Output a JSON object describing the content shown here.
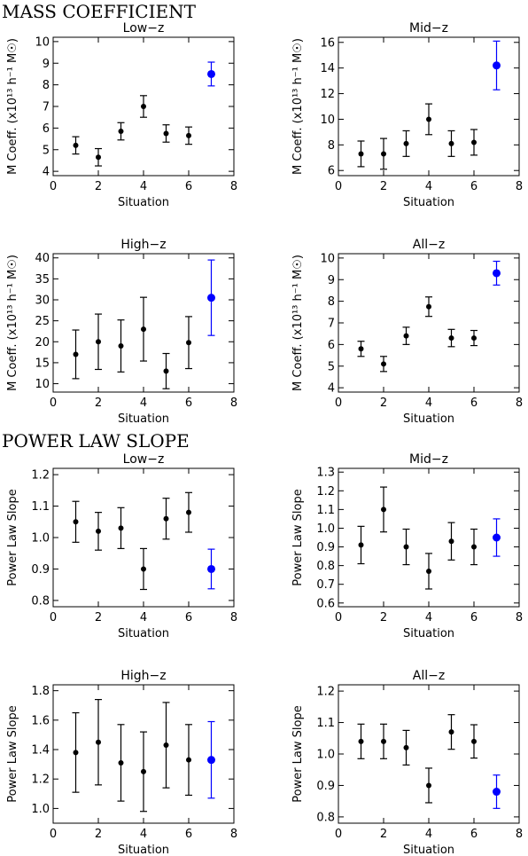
{
  "sections": [
    {
      "title": "MASS COEFFICIENT"
    },
    {
      "title": "POWER LAW SLOPE"
    }
  ],
  "colors": {
    "default": "#000000",
    "highlight": "#0000ff"
  },
  "chart_data": [
    {
      "type": "scatter",
      "title": "Low−z",
      "xlabel": "Situation",
      "ylabel": "M Coeff. (x10¹³ h⁻¹ M☉)",
      "xlim": [
        0,
        8
      ],
      "ylim": [
        3.8,
        10.2
      ],
      "xticks": [
        0,
        2,
        4,
        6,
        8
      ],
      "yticks": [
        4,
        5,
        6,
        7,
        8,
        9,
        10
      ],
      "x": [
        1,
        2,
        3,
        4,
        5,
        6,
        7
      ],
      "y": [
        5.2,
        4.65,
        5.85,
        7.0,
        5.75,
        5.65,
        8.5
      ],
      "err": [
        0.4,
        0.4,
        0.4,
        0.5,
        0.4,
        0.4,
        0.55
      ],
      "highlight_index": 6
    },
    {
      "type": "scatter",
      "title": "Mid−z",
      "xlabel": "Situation",
      "ylabel": "M Coeff. (x10¹³ h⁻¹ M☉)",
      "xlim": [
        0,
        8
      ],
      "ylim": [
        5.6,
        16.4
      ],
      "xticks": [
        0,
        2,
        4,
        6,
        8
      ],
      "yticks": [
        6,
        8,
        10,
        12,
        14,
        16
      ],
      "x": [
        1,
        2,
        3,
        4,
        5,
        6,
        7
      ],
      "y": [
        7.3,
        7.3,
        8.1,
        10.0,
        8.1,
        8.2,
        14.2
      ],
      "err": [
        1.0,
        1.2,
        1.0,
        1.2,
        1.0,
        1.0,
        1.9
      ],
      "highlight_index": 6
    },
    {
      "type": "scatter",
      "title": "High−z",
      "xlabel": "Situation",
      "ylabel": "M Coeff. (x10¹³ h⁻¹ M☉)",
      "xlim": [
        0,
        8
      ],
      "ylim": [
        8,
        41
      ],
      "xticks": [
        0,
        2,
        4,
        6,
        8
      ],
      "yticks": [
        10,
        15,
        20,
        25,
        30,
        35,
        40
      ],
      "x": [
        1,
        2,
        3,
        4,
        5,
        6,
        7
      ],
      "y": [
        17.0,
        20.0,
        19.0,
        23.0,
        13.0,
        19.8,
        30.5
      ],
      "err": [
        5.8,
        6.6,
        6.2,
        7.6,
        4.2,
        6.2,
        9.0
      ],
      "highlight_index": 6
    },
    {
      "type": "scatter",
      "title": "All−z",
      "xlabel": "Situation",
      "ylabel": "M Coeff. (x10¹³ h⁻¹ M☉)",
      "xlim": [
        0,
        8
      ],
      "ylim": [
        3.8,
        10.2
      ],
      "xticks": [
        0,
        2,
        4,
        6,
        8
      ],
      "yticks": [
        4,
        5,
        6,
        7,
        8,
        9,
        10
      ],
      "x": [
        1,
        2,
        3,
        4,
        5,
        6,
        7
      ],
      "y": [
        5.8,
        5.1,
        6.4,
        7.75,
        6.3,
        6.3,
        9.3
      ],
      "err": [
        0.35,
        0.35,
        0.4,
        0.45,
        0.4,
        0.35,
        0.55
      ],
      "highlight_index": 6
    },
    {
      "type": "scatter",
      "title": "Low−z",
      "xlabel": "Situation",
      "ylabel": "Power Law Slope",
      "xlim": [
        0,
        8
      ],
      "ylim": [
        0.78,
        1.22
      ],
      "xticks": [
        0,
        2,
        4,
        6,
        8
      ],
      "yticks": [
        0.8,
        0.9,
        1.0,
        1.1,
        1.2
      ],
      "ytick_labels": [
        "0.8",
        "0.9",
        "1.0",
        "1.1",
        "1.2"
      ],
      "x": [
        1,
        2,
        3,
        4,
        5,
        6,
        7
      ],
      "y": [
        1.05,
        1.02,
        1.03,
        0.9,
        1.06,
        1.08,
        0.9
      ],
      "err": [
        0.065,
        0.06,
        0.065,
        0.065,
        0.065,
        0.063,
        0.063
      ],
      "highlight_index": 6
    },
    {
      "type": "scatter",
      "title": "Mid−z",
      "xlabel": "Situation",
      "ylabel": "Power Law Slope",
      "xlim": [
        0,
        8
      ],
      "ylim": [
        0.58,
        1.32
      ],
      "xticks": [
        0,
        2,
        4,
        6,
        8
      ],
      "yticks": [
        0.6,
        0.7,
        0.8,
        0.9,
        1.0,
        1.1,
        1.2,
        1.3
      ],
      "ytick_labels": [
        "0.6",
        "0.7",
        "0.8",
        "0.9",
        "1.0",
        "1.1",
        "1.2",
        "1.3"
      ],
      "x": [
        1,
        2,
        3,
        4,
        5,
        6,
        7
      ],
      "y": [
        0.91,
        1.1,
        0.9,
        0.77,
        0.93,
        0.9,
        0.95
      ],
      "err": [
        0.1,
        0.12,
        0.095,
        0.095,
        0.1,
        0.095,
        0.1
      ],
      "highlight_index": 6
    },
    {
      "type": "scatter",
      "title": "High−z",
      "xlabel": "Situation",
      "ylabel": "Power Law Slope",
      "xlim": [
        0,
        8
      ],
      "ylim": [
        0.9,
        1.84
      ],
      "xticks": [
        0,
        2,
        4,
        6,
        8
      ],
      "yticks": [
        1.0,
        1.2,
        1.4,
        1.6,
        1.8
      ],
      "ytick_labels": [
        "1.0",
        "1.2",
        "1.4",
        "1.6",
        "1.8"
      ],
      "x": [
        1,
        2,
        3,
        4,
        5,
        6,
        7
      ],
      "y": [
        1.38,
        1.45,
        1.31,
        1.25,
        1.43,
        1.33,
        1.33
      ],
      "err": [
        0.27,
        0.29,
        0.26,
        0.27,
        0.29,
        0.24,
        0.26
      ],
      "highlight_index": 6
    },
    {
      "type": "scatter",
      "title": "All−z",
      "xlabel": "Situation",
      "ylabel": "Power Law Slope",
      "xlim": [
        0,
        8
      ],
      "ylim": [
        0.78,
        1.22
      ],
      "xticks": [
        0,
        2,
        4,
        6,
        8
      ],
      "yticks": [
        0.8,
        0.9,
        1.0,
        1.1,
        1.2
      ],
      "ytick_labels": [
        "0.8",
        "0.9",
        "1.0",
        "1.1",
        "1.2"
      ],
      "x": [
        1,
        2,
        3,
        4,
        5,
        6,
        7
      ],
      "y": [
        1.04,
        1.04,
        1.02,
        0.9,
        1.07,
        1.04,
        0.88
      ],
      "err": [
        0.055,
        0.055,
        0.055,
        0.055,
        0.055,
        0.053,
        0.053
      ],
      "highlight_index": 6
    }
  ]
}
